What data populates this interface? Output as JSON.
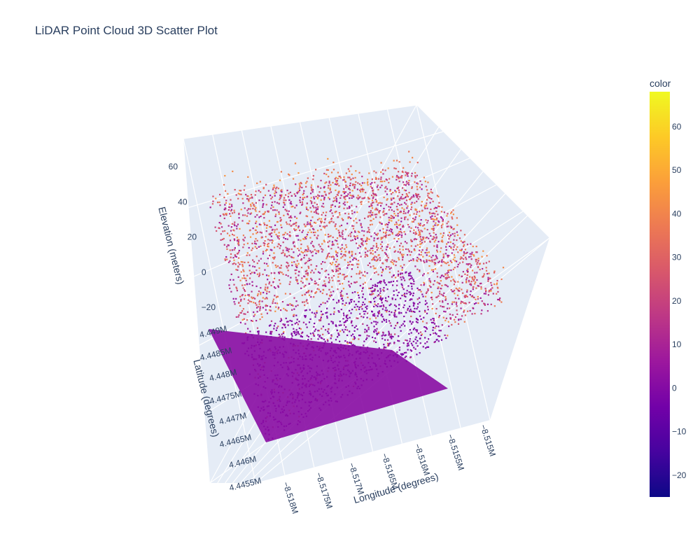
{
  "chart_data": {
    "type": "scatter",
    "title": "LiDAR Point Cloud 3D Scatter Plot",
    "axes": {
      "x": {
        "title": "Longitude (degrees)",
        "ticks": [
          "−8.518M",
          "−8.5175M",
          "−8.517M",
          "−8.5165M",
          "−8.516M",
          "−8.5155M",
          "−8.515M"
        ],
        "truncated_first_tick": "−8.518"
      },
      "y": {
        "title": "Latitude (degrees)",
        "ticks": [
          "4.4455M",
          "4.446M",
          "4.4465M",
          "4.447M",
          "4.4475M",
          "4.448M",
          "4.4485M",
          "4.449M"
        ]
      },
      "z": {
        "title": "Elevation (meters)",
        "ticks": [
          "−20",
          "0",
          "20",
          "40",
          "60"
        ]
      }
    },
    "colorbar": {
      "title": "color",
      "ticks": [
        "−20",
        "−10",
        "0",
        "10",
        "20",
        "30",
        "40",
        "50",
        "60"
      ],
      "range": [
        -25,
        68
      ],
      "colorscale": [
        "#0d0887",
        "#46039f",
        "#7201a8",
        "#9c179e",
        "#bd3786",
        "#d8576b",
        "#ed7953",
        "#fb9f3a",
        "#fdca26",
        "#f0f921"
      ]
    }
  }
}
